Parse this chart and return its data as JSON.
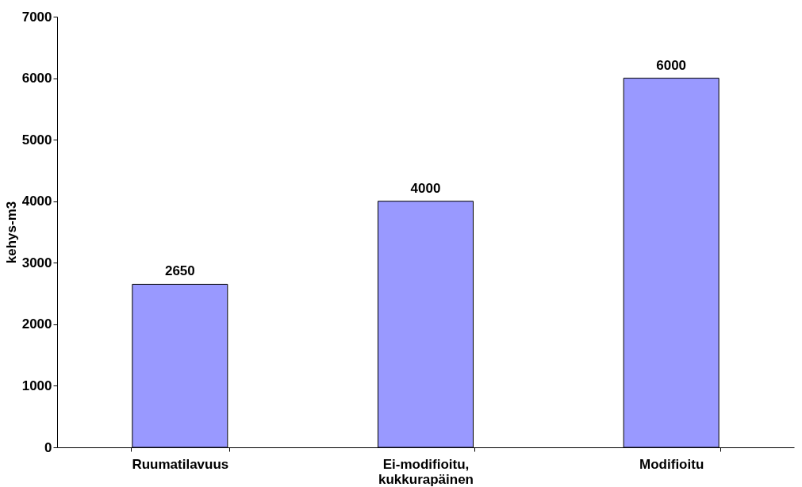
{
  "chart_data": {
    "type": "bar",
    "ylabel": "kehys-m3",
    "categories": [
      "Ruumatilavuus",
      "Ei-modifioitu, kukkurapäinen",
      "Modifioitu"
    ],
    "values": [
      2650,
      4000,
      6000
    ],
    "color": "#9999ff",
    "ylim": [
      0,
      7000
    ],
    "yticks": [
      0,
      1000,
      2000,
      3000,
      4000,
      5000,
      6000,
      7000
    ],
    "grid": false,
    "data_labels": true
  }
}
